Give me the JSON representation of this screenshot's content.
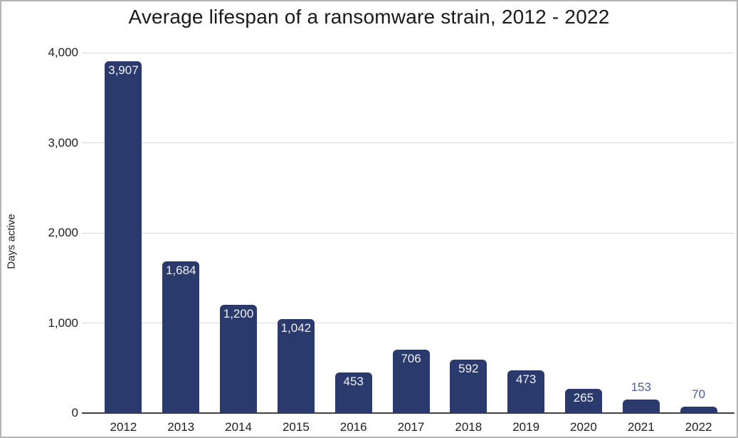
{
  "title": "Average lifespan of a ransomware strain, 2012 - 2022",
  "chart_data": {
    "type": "bar",
    "title": "Average lifespan of a ransomware strain, 2012 - 2022",
    "xlabel": "",
    "ylabel": "Days active",
    "categories": [
      "2012",
      "2013",
      "2014",
      "2015",
      "2016",
      "2017",
      "2018",
      "2019",
      "2020",
      "2021",
      "2022"
    ],
    "values": [
      3907,
      1684,
      1200,
      1042,
      453,
      706,
      592,
      473,
      265,
      153,
      70
    ],
    "value_labels": [
      "3,907",
      "1,684",
      "1,200",
      "1,042",
      "453",
      "706",
      "592",
      "473",
      "265",
      "153",
      "70"
    ],
    "ylim": [
      0,
      4000
    ],
    "yticks": [
      0,
      1000,
      2000,
      3000,
      4000
    ],
    "ytick_labels": [
      "0",
      "1,000",
      "2,000",
      "3,000",
      "4,000"
    ],
    "grid": true,
    "legend": "none",
    "colors": {
      "bar": "#2b3a6d",
      "label_inside": "#f1f1f1",
      "label_outside": "#4c5f96",
      "gridline": "#d9d9d9",
      "axis": "#424242",
      "title": "#1a1a1a",
      "border": "#b4b4b4"
    }
  }
}
